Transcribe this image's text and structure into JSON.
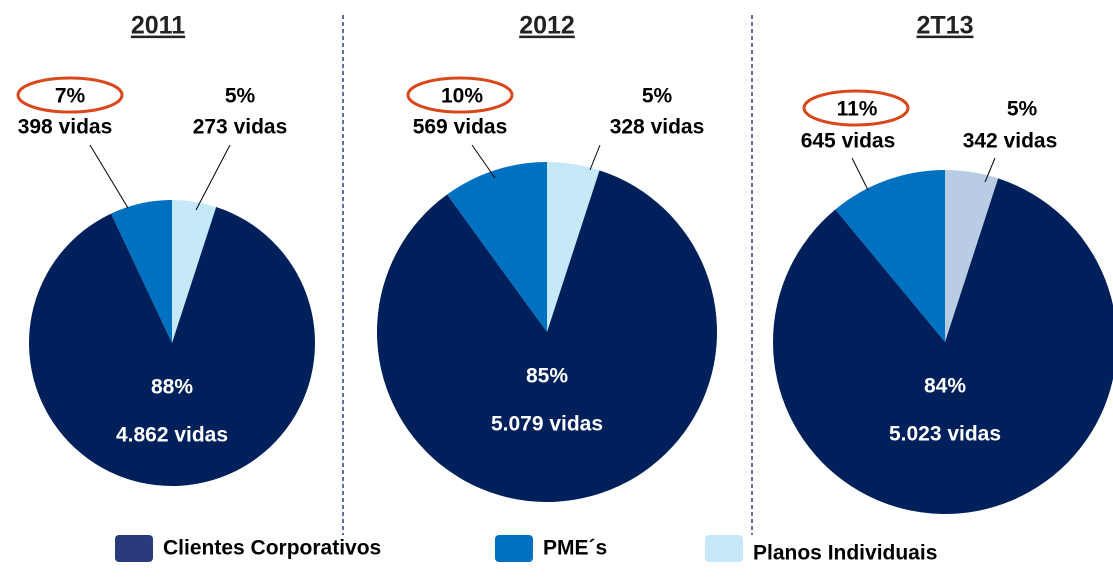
{
  "chart_data": [
    {
      "type": "pie",
      "title": "2011",
      "values": [
        88,
        7,
        5
      ],
      "value_labels": [
        "88%",
        "7%",
        "5%"
      ],
      "lives": [
        4862,
        398,
        273
      ],
      "lives_labels": [
        "4.862 vidas",
        "398 vidas",
        "273 vidas"
      ],
      "colors": [
        "#00205b",
        "#0070c0",
        "#c6e9fa"
      ]
    },
    {
      "type": "pie",
      "title": "2012",
      "values": [
        85,
        10,
        5
      ],
      "value_labels": [
        "85%",
        "10%",
        "5%"
      ],
      "lives": [
        5079,
        569,
        328
      ],
      "lives_labels": [
        "5.079 vidas",
        "569 vidas",
        "328 vidas"
      ],
      "colors": [
        "#00205b",
        "#0070c0",
        "#c6e9fa"
      ]
    },
    {
      "type": "pie",
      "title": "2T13",
      "values": [
        84,
        11,
        5
      ],
      "value_labels": [
        "84%",
        "11%",
        "5%"
      ],
      "lives": [
        5023,
        645,
        342
      ],
      "lives_labels": [
        "5.023 vidas",
        "645 vidas",
        "342 vidas"
      ],
      "colors": [
        "#00205b",
        "#0070c0",
        "#b8cce4"
      ]
    }
  ],
  "legend": {
    "labels": [
      "Clientes Corporativos",
      "PME´s",
      "Planos Individuais"
    ],
    "colors": [
      "#2b3a7a",
      "#0070c0",
      "#c6e9fa"
    ]
  }
}
